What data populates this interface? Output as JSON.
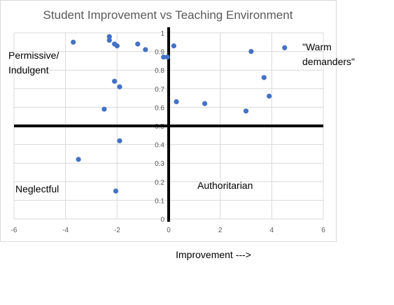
{
  "chart_data": {
    "type": "scatter",
    "title": "Student Improvement vs Teaching Environment",
    "xlabel": "Improvement --->",
    "ylabel": "",
    "xlim": [
      -6,
      6
    ],
    "ylim": [
      0,
      1
    ],
    "x_ticks": [
      "-6",
      "-4",
      "-2",
      "0",
      "2",
      "4",
      "6"
    ],
    "y_ticks": [
      "0",
      "0.1",
      "0.2",
      "0.3",
      "0.4",
      "0.5",
      "0.6",
      "0.7",
      "0.8",
      "0.9",
      "1"
    ],
    "grid": true,
    "marker_color": "#4472C4",
    "quadrant_axis_color": "#000000",
    "quadrant_labels": {
      "top_left": [
        "Permissive/",
        "Indulgent"
      ],
      "top_right": [
        "\"Warm",
        "demanders\""
      ],
      "bottom_left": [
        "Neglectful"
      ],
      "bottom_right": [
        "Authoritarian"
      ]
    },
    "points": [
      {
        "x": -3.7,
        "y": 0.95
      },
      {
        "x": -3.5,
        "y": 0.32
      },
      {
        "x": -2.3,
        "y": 0.98
      },
      {
        "x": -2.3,
        "y": 0.96
      },
      {
        "x": -2.1,
        "y": 0.94
      },
      {
        "x": -2.0,
        "y": 0.93
      },
      {
        "x": -2.1,
        "y": 0.74
      },
      {
        "x": -1.9,
        "y": 0.71
      },
      {
        "x": -2.5,
        "y": 0.59
      },
      {
        "x": -1.9,
        "y": 0.42
      },
      {
        "x": -2.05,
        "y": 0.15
      },
      {
        "x": -1.2,
        "y": 0.94
      },
      {
        "x": -0.9,
        "y": 0.91
      },
      {
        "x": -0.2,
        "y": 0.87
      },
      {
        "x": -0.05,
        "y": 0.87
      },
      {
        "x": 0.2,
        "y": 0.93
      },
      {
        "x": 0.3,
        "y": 0.63
      },
      {
        "x": 1.4,
        "y": 0.62
      },
      {
        "x": 3.0,
        "y": 0.58
      },
      {
        "x": 3.2,
        "y": 0.9
      },
      {
        "x": 3.7,
        "y": 0.76
      },
      {
        "x": 3.9,
        "y": 0.66
      },
      {
        "x": 4.5,
        "y": 0.92
      }
    ]
  }
}
